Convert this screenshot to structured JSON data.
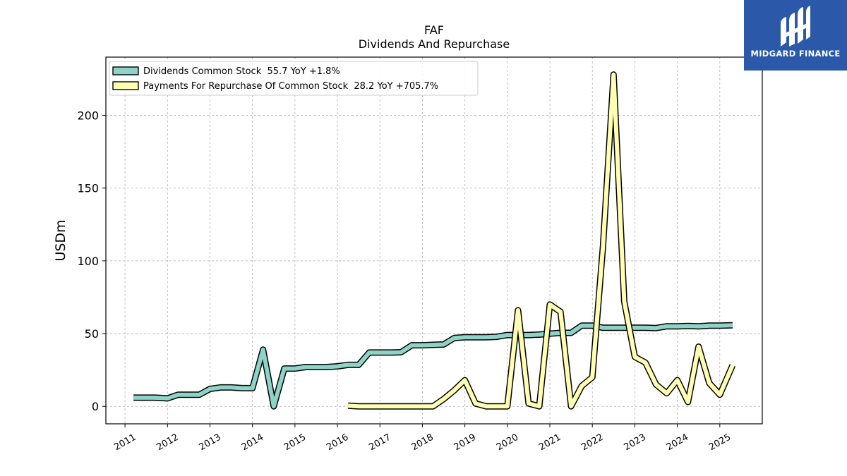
{
  "chart_data": {
    "type": "line",
    "title": "FAF",
    "subtitle": "Dividends And Repurchase",
    "ylabel": "USDm",
    "xlabel": "",
    "ylim": [
      -12,
      240
    ],
    "xlim": [
      2010.55,
      2026.0
    ],
    "yticks": [
      0,
      50,
      100,
      150,
      200
    ],
    "xticks": [
      "2011",
      "2012",
      "2013",
      "2014",
      "2015",
      "2016",
      "2017",
      "2018",
      "2019",
      "2020",
      "2021",
      "2022",
      "2023",
      "2024",
      "2025"
    ],
    "grid": true,
    "legend_position": "top-left",
    "series": [
      {
        "name": "Dividends Common Stock",
        "legend_label": "Dividends Common Stock  55.7 YoY +1.8%",
        "color": "#8dd3c7",
        "x": [
          2011.2,
          2011.45,
          2011.7,
          2012.0,
          2012.25,
          2012.5,
          2012.75,
          2013.0,
          2013.25,
          2013.5,
          2013.75,
          2014.0,
          2014.25,
          2014.5,
          2014.75,
          2015.0,
          2015.25,
          2015.5,
          2015.75,
          2016.0,
          2016.25,
          2016.5,
          2016.75,
          2017.0,
          2017.25,
          2017.5,
          2017.75,
          2018.0,
          2018.25,
          2018.5,
          2018.75,
          2019.0,
          2019.25,
          2019.5,
          2019.75,
          2020.0,
          2020.25,
          2020.5,
          2020.75,
          2021.0,
          2021.25,
          2021.5,
          2021.75,
          2022.0,
          2022.25,
          2022.5,
          2022.75,
          2023.0,
          2023.25,
          2023.5,
          2023.75,
          2024.0,
          2024.25,
          2024.5,
          2024.75,
          2025.0,
          2025.3
        ],
        "values": [
          6,
          6,
          6,
          5.5,
          8,
          8,
          8,
          12,
          13,
          13,
          12.5,
          12.5,
          39,
          0,
          26,
          26,
          27,
          27,
          27,
          27.5,
          28.5,
          28.5,
          37,
          37,
          37,
          37.2,
          42,
          42,
          42.3,
          42.5,
          47,
          47.5,
          47.5,
          47.5,
          47.8,
          49,
          49,
          49,
          49.3,
          50,
          50.5,
          50.5,
          55.5,
          55.5,
          54,
          54,
          54,
          54,
          54,
          53.8,
          55,
          55,
          55.2,
          55,
          55.5,
          55.5,
          55.7
        ]
      },
      {
        "name": "Payments For Repurchase Of Common Stock",
        "legend_label": "Payments For Repurchase Of Common Stock  28.2 YoY +705.7%",
        "color": "#ffffb3",
        "x": [
          2016.25,
          2016.5,
          2016.75,
          2017.0,
          2017.25,
          2017.5,
          2017.75,
          2018.0,
          2018.25,
          2018.5,
          2018.75,
          2019.0,
          2019.25,
          2019.5,
          2019.75,
          2020.0,
          2020.25,
          2020.5,
          2020.75,
          2021.0,
          2021.25,
          2021.5,
          2021.75,
          2022.0,
          2022.25,
          2022.5,
          2022.75,
          2023.0,
          2023.25,
          2023.5,
          2023.75,
          2024.0,
          2024.25,
          2024.5,
          2024.75,
          2025.0,
          2025.3
        ],
        "values": [
          0.5,
          0,
          0,
          0,
          0,
          0,
          0,
          0,
          0,
          5,
          11,
          18,
          2,
          0,
          0,
          0,
          66,
          2,
          0,
          70,
          65,
          0,
          14,
          20,
          110,
          228,
          72,
          34,
          30,
          15,
          9,
          18,
          3,
          41,
          16,
          8,
          28.2
        ]
      }
    ]
  },
  "logo": {
    "name": "MIDGARD FINANCE"
  }
}
